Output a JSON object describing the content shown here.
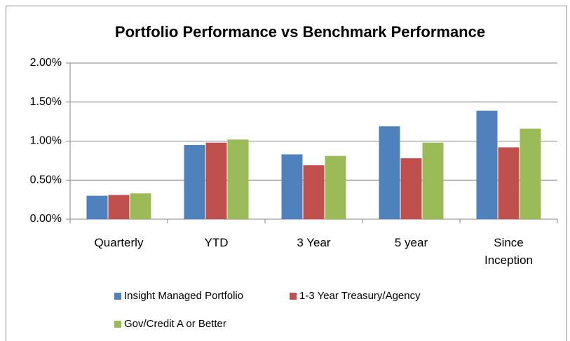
{
  "chart_data": {
    "type": "bar",
    "title": "Portfolio Performance vs Benchmark Performance",
    "categories": [
      "Quarterly",
      "YTD",
      "3 Year",
      "5 year",
      "Since Inception"
    ],
    "series": [
      {
        "name": "Insight Managed Portfolio",
        "color": "#4f81bd",
        "values": [
          0.3,
          0.95,
          0.83,
          1.19,
          1.39
        ]
      },
      {
        "name": "1-3 Year Treasury/Agency",
        "color": "#c0504d",
        "values": [
          0.31,
          0.98,
          0.69,
          0.78,
          0.92
        ]
      },
      {
        "name": "Gov/Credit A or Better",
        "color": "#9bbb59",
        "values": [
          0.33,
          1.02,
          0.81,
          0.98,
          1.16
        ]
      }
    ],
    "ylim": [
      0,
      2
    ],
    "yticks": [
      {
        "value": 0,
        "label": "0.00%"
      },
      {
        "value": 0.5,
        "label": "0.50%"
      },
      {
        "value": 1,
        "label": "1.00%"
      },
      {
        "value": 1.5,
        "label": "1.50%"
      },
      {
        "value": 2,
        "label": "2.00%"
      }
    ],
    "grid": true,
    "legend": "bottom"
  }
}
